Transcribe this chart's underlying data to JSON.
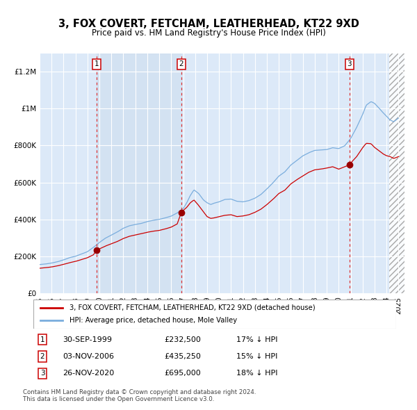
{
  "title": "3, FOX COVERT, FETCHAM, LEATHERHEAD, KT22 9XD",
  "subtitle": "Price paid vs. HM Land Registry's House Price Index (HPI)",
  "xmin": 1995.0,
  "xmax": 2025.5,
  "ymin": 0,
  "ymax": 1300000,
  "yticks": [
    0,
    200000,
    400000,
    600000,
    800000,
    1000000,
    1200000
  ],
  "ytick_labels": [
    "£0",
    "£200K",
    "£400K",
    "£600K",
    "£800K",
    "£1M",
    "£1.2M"
  ],
  "xticks": [
    1995,
    1996,
    1997,
    1998,
    1999,
    2000,
    2001,
    2002,
    2003,
    2004,
    2005,
    2006,
    2007,
    2008,
    2009,
    2010,
    2011,
    2012,
    2013,
    2014,
    2015,
    2016,
    2017,
    2018,
    2019,
    2020,
    2021,
    2022,
    2023,
    2024,
    2025
  ],
  "bg_color": "#dce9f8",
  "grid_color": "#ffffff",
  "red_line_color": "#cc0000",
  "blue_line_color": "#7aaddd",
  "purchase_marker_color": "#990000",
  "dashed_line_color": "#dd3333",
  "purchases": [
    {
      "num": 1,
      "year": 1999.75,
      "price": 232500,
      "label": "30-SEP-1999",
      "price_str": "£232,500",
      "hpi_str": "17% ↓ HPI"
    },
    {
      "num": 2,
      "year": 2006.83,
      "price": 435250,
      "label": "03-NOV-2006",
      "price_str": "£435,250",
      "hpi_str": "15% ↓ HPI"
    },
    {
      "num": 3,
      "year": 2020.9,
      "price": 695000,
      "label": "26-NOV-2020",
      "price_str": "£695,000",
      "hpi_str": "18% ↓ HPI"
    }
  ],
  "legend_line1": "3, FOX COVERT, FETCHAM, LEATHERHEAD, KT22 9XD (detached house)",
  "legend_line2": "HPI: Average price, detached house, Mole Valley",
  "footer1": "Contains HM Land Registry data © Crown copyright and database right 2024.",
  "footer2": "This data is licensed under the Open Government Licence v3.0.",
  "hpi_anchors": [
    [
      1995.0,
      155000
    ],
    [
      1995.5,
      158000
    ],
    [
      1996.0,
      163000
    ],
    [
      1996.5,
      170000
    ],
    [
      1997.0,
      180000
    ],
    [
      1997.5,
      192000
    ],
    [
      1998.0,
      200000
    ],
    [
      1998.5,
      212000
    ],
    [
      1999.0,
      225000
    ],
    [
      1999.5,
      248000
    ],
    [
      2000.0,
      275000
    ],
    [
      2000.5,
      298000
    ],
    [
      2001.0,
      315000
    ],
    [
      2001.5,
      332000
    ],
    [
      2002.0,
      352000
    ],
    [
      2002.5,
      365000
    ],
    [
      2003.0,
      372000
    ],
    [
      2003.5,
      378000
    ],
    [
      2004.0,
      388000
    ],
    [
      2004.5,
      395000
    ],
    [
      2005.0,
      400000
    ],
    [
      2005.5,
      408000
    ],
    [
      2006.0,
      418000
    ],
    [
      2006.5,
      435000
    ],
    [
      2007.0,
      458000
    ],
    [
      2007.3,
      490000
    ],
    [
      2007.6,
      530000
    ],
    [
      2007.9,
      560000
    ],
    [
      2008.3,
      540000
    ],
    [
      2008.7,
      505000
    ],
    [
      2009.0,
      490000
    ],
    [
      2009.3,
      480000
    ],
    [
      2009.6,
      488000
    ],
    [
      2010.0,
      495000
    ],
    [
      2010.5,
      508000
    ],
    [
      2011.0,
      510000
    ],
    [
      2011.5,
      498000
    ],
    [
      2012.0,
      495000
    ],
    [
      2012.5,
      502000
    ],
    [
      2013.0,
      515000
    ],
    [
      2013.5,
      535000
    ],
    [
      2014.0,
      565000
    ],
    [
      2014.5,
      598000
    ],
    [
      2015.0,
      635000
    ],
    [
      2015.5,
      658000
    ],
    [
      2016.0,
      695000
    ],
    [
      2016.5,
      720000
    ],
    [
      2017.0,
      745000
    ],
    [
      2017.5,
      762000
    ],
    [
      2018.0,
      775000
    ],
    [
      2018.5,
      778000
    ],
    [
      2019.0,
      780000
    ],
    [
      2019.5,
      790000
    ],
    [
      2020.0,
      785000
    ],
    [
      2020.5,
      800000
    ],
    [
      2021.0,
      840000
    ],
    [
      2021.5,
      900000
    ],
    [
      2022.0,
      970000
    ],
    [
      2022.3,
      1020000
    ],
    [
      2022.7,
      1040000
    ],
    [
      2023.0,
      1030000
    ],
    [
      2023.3,
      1010000
    ],
    [
      2023.7,
      980000
    ],
    [
      2024.0,
      960000
    ],
    [
      2024.3,
      940000
    ],
    [
      2024.6,
      930000
    ],
    [
      2025.0,
      950000
    ]
  ],
  "prop_anchors": [
    [
      1995.0,
      135000
    ],
    [
      1995.5,
      138000
    ],
    [
      1996.0,
      142000
    ],
    [
      1996.5,
      148000
    ],
    [
      1997.0,
      156000
    ],
    [
      1997.5,
      165000
    ],
    [
      1998.0,
      172000
    ],
    [
      1998.5,
      182000
    ],
    [
      1999.0,
      192000
    ],
    [
      1999.5,
      208000
    ],
    [
      1999.75,
      232500
    ],
    [
      2000.0,
      240000
    ],
    [
      2000.5,
      255000
    ],
    [
      2001.0,
      268000
    ],
    [
      2001.5,
      280000
    ],
    [
      2002.0,
      296000
    ],
    [
      2002.5,
      308000
    ],
    [
      2003.0,
      315000
    ],
    [
      2003.5,
      322000
    ],
    [
      2004.0,
      330000
    ],
    [
      2004.5,
      336000
    ],
    [
      2005.0,
      340000
    ],
    [
      2005.5,
      348000
    ],
    [
      2006.0,
      358000
    ],
    [
      2006.5,
      375000
    ],
    [
      2006.83,
      435250
    ],
    [
      2007.0,
      448000
    ],
    [
      2007.3,
      465000
    ],
    [
      2007.6,
      490000
    ],
    [
      2007.9,
      505000
    ],
    [
      2008.3,
      475000
    ],
    [
      2008.7,
      440000
    ],
    [
      2009.0,
      415000
    ],
    [
      2009.3,
      405000
    ],
    [
      2009.6,
      408000
    ],
    [
      2010.0,
      415000
    ],
    [
      2010.5,
      422000
    ],
    [
      2011.0,
      425000
    ],
    [
      2011.5,
      415000
    ],
    [
      2012.0,
      418000
    ],
    [
      2012.5,
      425000
    ],
    [
      2013.0,
      438000
    ],
    [
      2013.5,
      455000
    ],
    [
      2014.0,
      480000
    ],
    [
      2014.5,
      508000
    ],
    [
      2015.0,
      540000
    ],
    [
      2015.5,
      558000
    ],
    [
      2016.0,
      592000
    ],
    [
      2016.5,
      615000
    ],
    [
      2017.0,
      635000
    ],
    [
      2017.5,
      655000
    ],
    [
      2018.0,
      668000
    ],
    [
      2018.5,
      672000
    ],
    [
      2019.0,
      678000
    ],
    [
      2019.5,
      685000
    ],
    [
      2020.0,
      672000
    ],
    [
      2020.5,
      685000
    ],
    [
      2020.9,
      695000
    ],
    [
      2021.0,
      705000
    ],
    [
      2021.5,
      740000
    ],
    [
      2022.0,
      788000
    ],
    [
      2022.3,
      812000
    ],
    [
      2022.7,
      810000
    ],
    [
      2023.0,
      790000
    ],
    [
      2023.3,
      775000
    ],
    [
      2023.7,
      755000
    ],
    [
      2024.0,
      745000
    ],
    [
      2024.3,
      740000
    ],
    [
      2024.6,
      730000
    ],
    [
      2025.0,
      740000
    ]
  ]
}
